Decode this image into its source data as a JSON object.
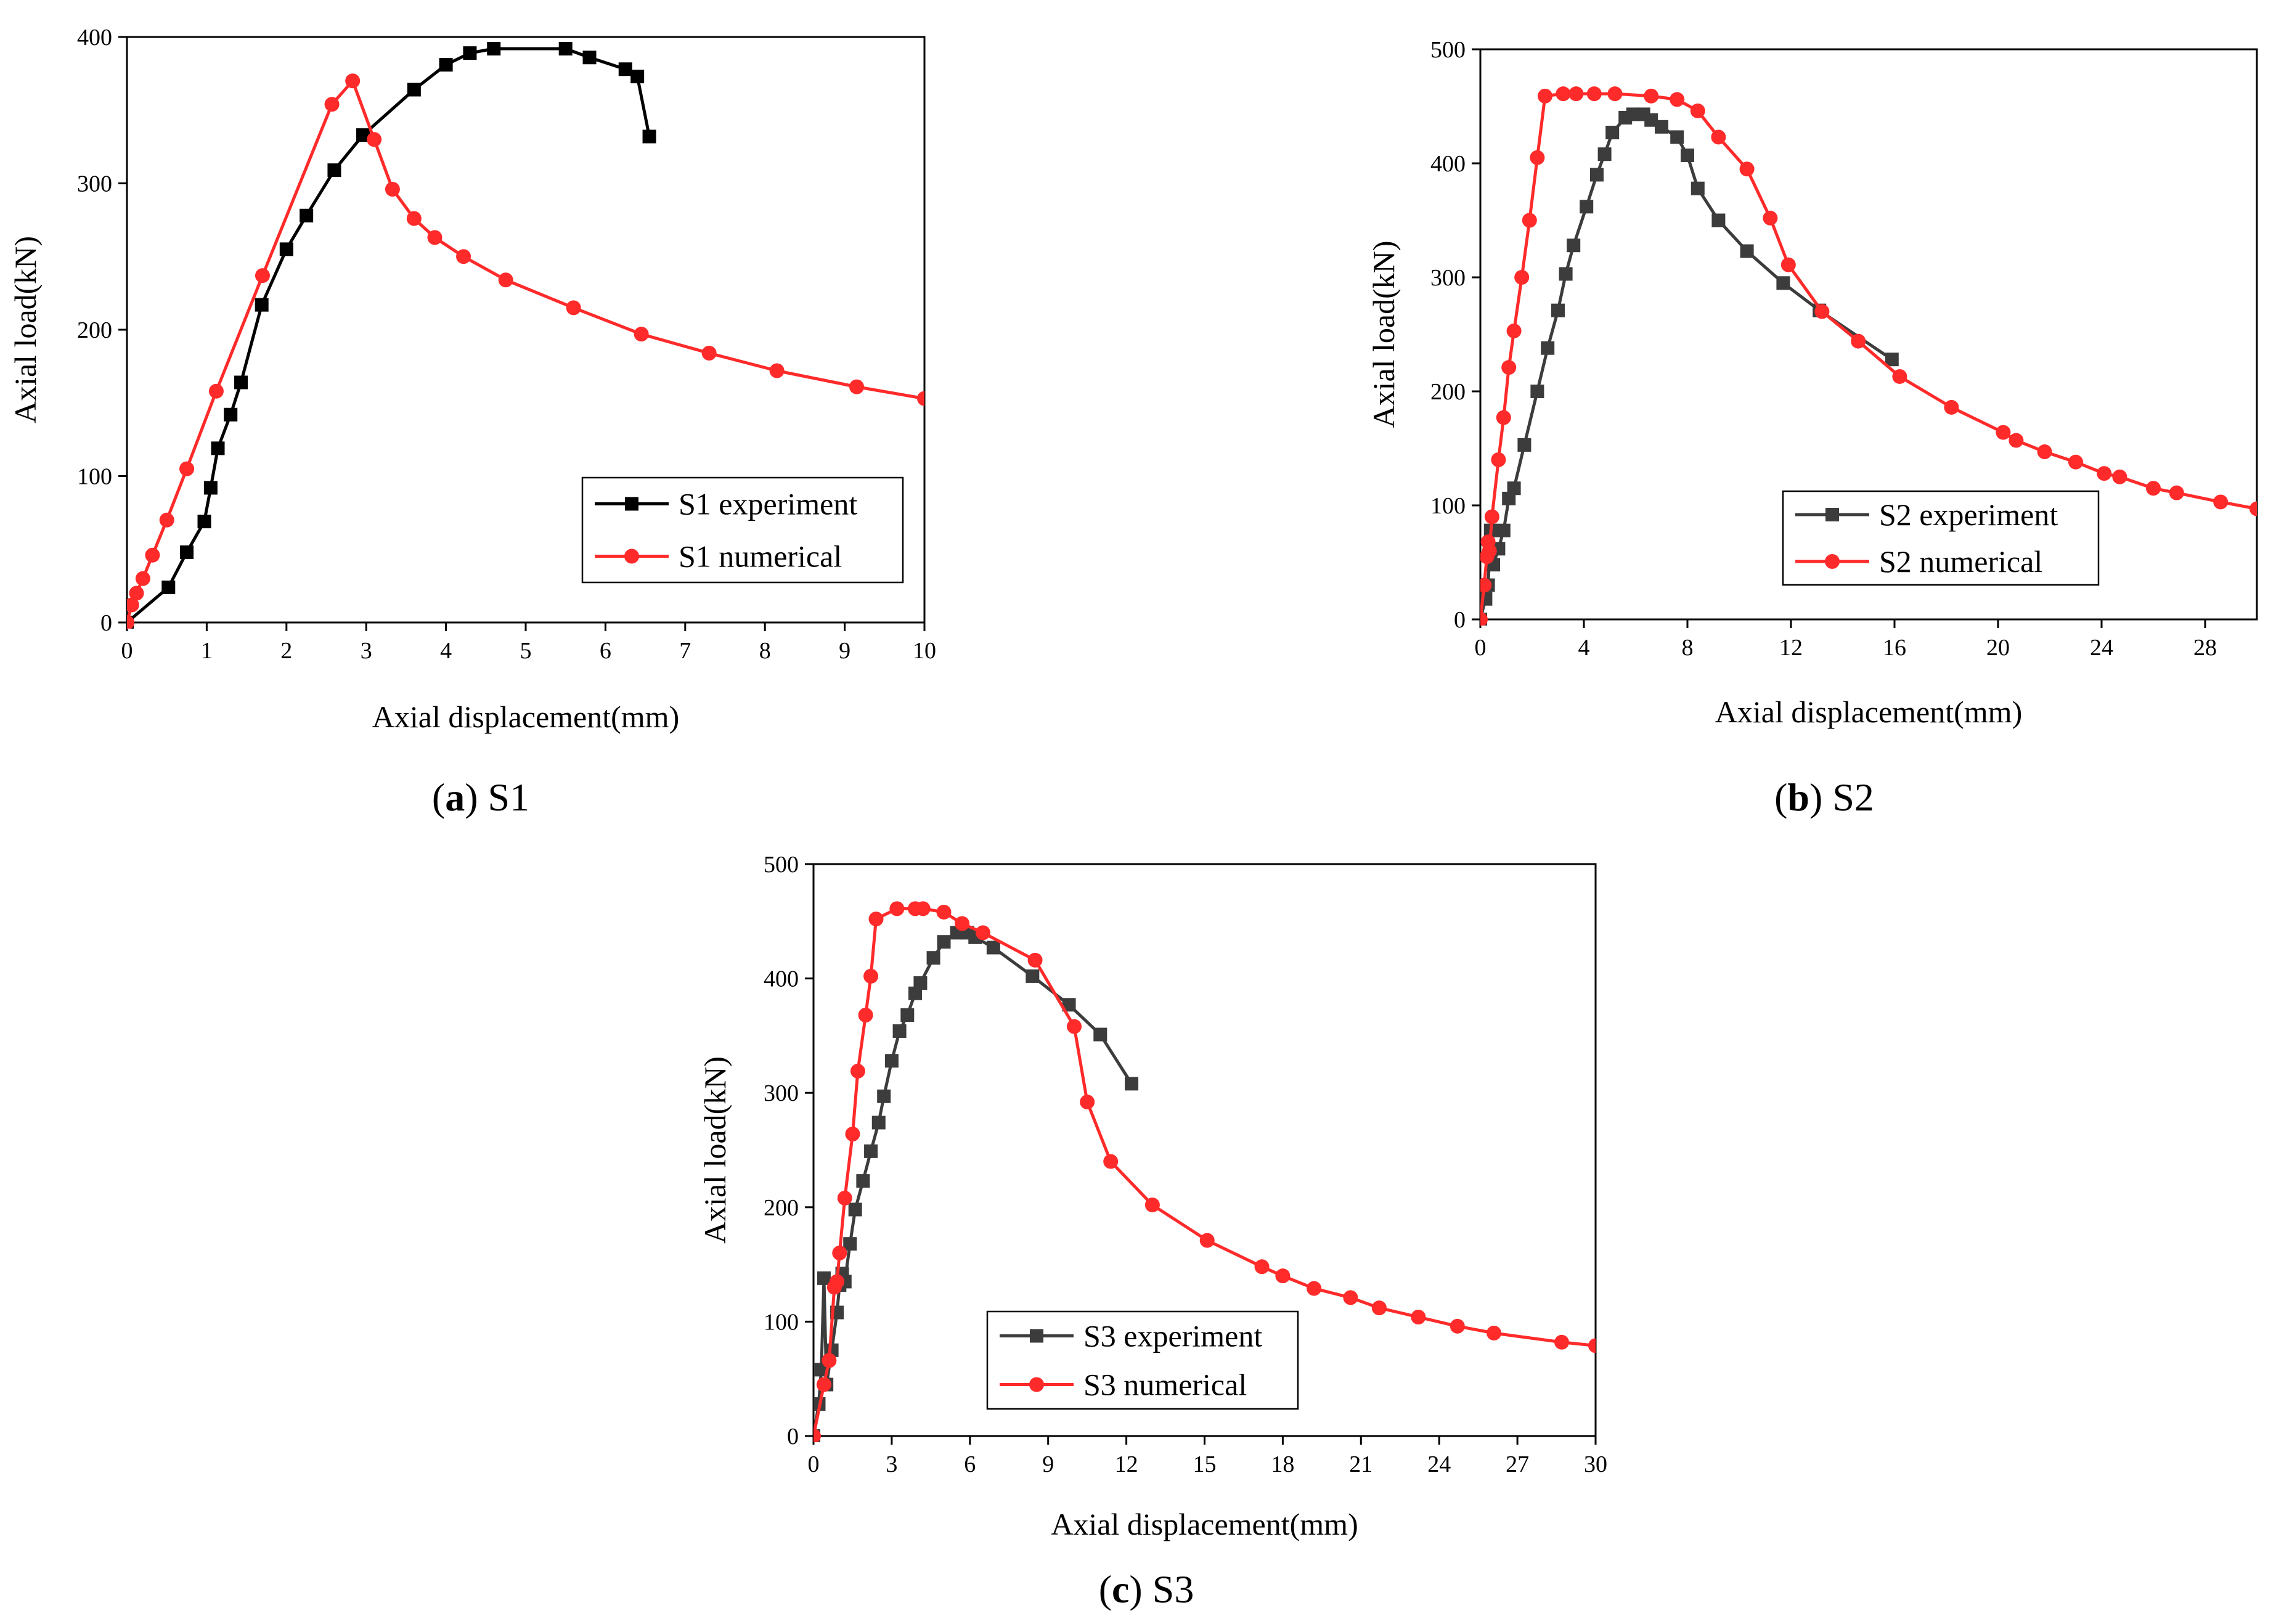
{
  "colors": {
    "s1_experiment": "#000000",
    "experiment_gray": "#3c3c3c",
    "numerical_red": "#ff2a2a"
  },
  "chart_data": [
    {
      "id": "a",
      "type": "line",
      "caption": {
        "letter": "a",
        "text": "S1"
      },
      "xlabel": "Axial displacement(mm)",
      "ylabel": "Axial load(kN)",
      "xlim": [
        0,
        10
      ],
      "ylim": [
        0,
        400
      ],
      "xticks": [
        0,
        1,
        2,
        3,
        4,
        5,
        6,
        7,
        8,
        9,
        10
      ],
      "yticks": [
        0,
        100,
        200,
        300,
        400
      ],
      "legend_position": "bottom-right",
      "series": [
        {
          "name": "S1 experiment",
          "marker": "square",
          "color": "#000000",
          "points": [
            [
              0,
              0
            ],
            [
              0.52,
              24
            ],
            [
              0.75,
              48
            ],
            [
              0.97,
              69
            ],
            [
              1.05,
              92
            ],
            [
              1.14,
              119
            ],
            [
              1.3,
              142
            ],
            [
              1.43,
              164
            ],
            [
              1.69,
              217
            ],
            [
              2.0,
              255
            ],
            [
              2.25,
              278
            ],
            [
              2.6,
              309
            ],
            [
              2.96,
              333
            ],
            [
              3.6,
              364
            ],
            [
              4.0,
              381
            ],
            [
              4.3,
              389
            ],
            [
              4.6,
              392
            ],
            [
              5.5,
              392
            ],
            [
              5.8,
              386
            ],
            [
              6.25,
              378
            ],
            [
              6.4,
              373
            ],
            [
              6.55,
              332
            ]
          ]
        },
        {
          "name": "S1 numerical",
          "marker": "circle",
          "color": "#ff2a2a",
          "points": [
            [
              0,
              0
            ],
            [
              0.06,
              12
            ],
            [
              0.12,
              20
            ],
            [
              0.2,
              30
            ],
            [
              0.32,
              46
            ],
            [
              0.5,
              70
            ],
            [
              0.75,
              105
            ],
            [
              1.12,
              158
            ],
            [
              1.7,
              237
            ],
            [
              2.57,
              354
            ],
            [
              2.83,
              370
            ],
            [
              3.1,
              330
            ],
            [
              3.33,
              296
            ],
            [
              3.6,
              276
            ],
            [
              3.86,
              263
            ],
            [
              4.22,
              250
            ],
            [
              4.75,
              234
            ],
            [
              5.6,
              215
            ],
            [
              6.45,
              197
            ],
            [
              7.3,
              184
            ],
            [
              8.15,
              172
            ],
            [
              9.15,
              161
            ],
            [
              10.0,
              153
            ]
          ]
        }
      ]
    },
    {
      "id": "b",
      "type": "line",
      "caption": {
        "letter": "b",
        "text": "S2"
      },
      "xlabel": "Axial displacement(mm)",
      "ylabel": "Axial load(kN)",
      "xlim": [
        0,
        30
      ],
      "ylim": [
        0,
        500
      ],
      "xticks": [
        0,
        4,
        8,
        12,
        16,
        20,
        24,
        28
      ],
      "yticks": [
        0,
        100,
        200,
        300,
        400,
        500
      ],
      "legend_position": "bottom-right",
      "series": [
        {
          "name": "S2 experiment",
          "marker": "square",
          "color": "#3c3c3c",
          "points": [
            [
              0,
              0
            ],
            [
              0.2,
              18
            ],
            [
              0.3,
              30
            ],
            [
              0.4,
              78
            ],
            [
              0.5,
              48
            ],
            [
              0.7,
              62
            ],
            [
              0.9,
              78
            ],
            [
              1.1,
              106
            ],
            [
              1.3,
              115
            ],
            [
              1.7,
              153
            ],
            [
              2.2,
              200
            ],
            [
              2.6,
              238
            ],
            [
              3.0,
              271
            ],
            [
              3.3,
              303
            ],
            [
              3.6,
              328
            ],
            [
              4.1,
              362
            ],
            [
              4.5,
              390
            ],
            [
              4.8,
              408
            ],
            [
              5.1,
              427
            ],
            [
              5.6,
              440
            ],
            [
              5.9,
              443
            ],
            [
              6.3,
              443
            ],
            [
              6.6,
              438
            ],
            [
              7.0,
              432
            ],
            [
              7.6,
              423
            ],
            [
              8.0,
              407
            ],
            [
              8.4,
              378
            ],
            [
              9.2,
              350
            ],
            [
              10.3,
              323
            ],
            [
              11.7,
              295
            ],
            [
              13.1,
              271
            ],
            [
              15.9,
              228
            ]
          ]
        },
        {
          "name": "S2 numerical",
          "marker": "circle",
          "color": "#ff2a2a",
          "points": [
            [
              0,
              0
            ],
            [
              0.15,
              30
            ],
            [
              0.25,
              55
            ],
            [
              0.3,
              68
            ],
            [
              0.35,
              60
            ],
            [
              0.45,
              90
            ],
            [
              0.7,
              140
            ],
            [
              0.9,
              177
            ],
            [
              1.1,
              221
            ],
            [
              1.3,
              253
            ],
            [
              1.6,
              300
            ],
            [
              1.9,
              350
            ],
            [
              2.2,
              405
            ],
            [
              2.5,
              459
            ],
            [
              3.2,
              461
            ],
            [
              3.7,
              461
            ],
            [
              4.4,
              461
            ],
            [
              5.2,
              461
            ],
            [
              6.6,
              459
            ],
            [
              7.6,
              456
            ],
            [
              8.4,
              446
            ],
            [
              9.2,
              423
            ],
            [
              10.3,
              395
            ],
            [
              11.2,
              352
            ],
            [
              11.9,
              311
            ],
            [
              13.2,
              270
            ],
            [
              14.6,
              244
            ],
            [
              16.2,
              213
            ],
            [
              18.2,
              186
            ],
            [
              20.2,
              164
            ],
            [
              20.7,
              157
            ],
            [
              21.8,
              147
            ],
            [
              23.0,
              138
            ],
            [
              24.1,
              128
            ],
            [
              24.7,
              125
            ],
            [
              26.0,
              115
            ],
            [
              26.9,
              111
            ],
            [
              28.6,
              103
            ],
            [
              30.0,
              97
            ]
          ]
        }
      ]
    },
    {
      "id": "c",
      "type": "line",
      "caption": {
        "letter": "c",
        "text": "S3"
      },
      "xlabel": "Axial displacement(mm)",
      "ylabel": "Axial load(kN)",
      "xlim": [
        0,
        30
      ],
      "ylim": [
        0,
        500
      ],
      "xticks": [
        0,
        3,
        6,
        9,
        12,
        15,
        18,
        21,
        24,
        27,
        30
      ],
      "yticks": [
        0,
        100,
        200,
        300,
        400,
        500
      ],
      "legend_position": "bottom-center",
      "series": [
        {
          "name": "S3 experiment",
          "marker": "square",
          "color": "#3c3c3c",
          "points": [
            [
              0,
              0
            ],
            [
              0.2,
              28
            ],
            [
              0.3,
              58
            ],
            [
              0.4,
              138
            ],
            [
              0.5,
              45
            ],
            [
              0.7,
              75
            ],
            [
              0.9,
              108
            ],
            [
              1.0,
              132
            ],
            [
              1.1,
              142
            ],
            [
              1.2,
              135
            ],
            [
              1.4,
              168
            ],
            [
              1.6,
              198
            ],
            [
              1.9,
              223
            ],
            [
              2.2,
              249
            ],
            [
              2.5,
              274
            ],
            [
              2.7,
              297
            ],
            [
              3.0,
              328
            ],
            [
              3.3,
              354
            ],
            [
              3.6,
              368
            ],
            [
              3.9,
              387
            ],
            [
              4.1,
              396
            ],
            [
              4.6,
              418
            ],
            [
              5.0,
              432
            ],
            [
              5.5,
              440
            ],
            [
              5.9,
              440
            ],
            [
              6.2,
              436
            ],
            [
              6.9,
              427
            ],
            [
              8.4,
              402
            ],
            [
              9.8,
              377
            ],
            [
              11.0,
              351
            ],
            [
              12.2,
              308
            ]
          ]
        },
        {
          "name": "S3 numerical",
          "marker": "circle",
          "color": "#ff2a2a",
          "points": [
            [
              0,
              0
            ],
            [
              0.4,
              45
            ],
            [
              0.6,
              66
            ],
            [
              0.8,
              130
            ],
            [
              0.9,
              135
            ],
            [
              1.0,
              160
            ],
            [
              1.2,
              208
            ],
            [
              1.5,
              264
            ],
            [
              1.7,
              319
            ],
            [
              2.0,
              368
            ],
            [
              2.2,
              402
            ],
            [
              2.4,
              452
            ],
            [
              3.2,
              461
            ],
            [
              3.9,
              461
            ],
            [
              4.2,
              461
            ],
            [
              5.0,
              458
            ],
            [
              5.7,
              448
            ],
            [
              6.5,
              440
            ],
            [
              8.5,
              416
            ],
            [
              10.0,
              358
            ],
            [
              10.5,
              292
            ],
            [
              11.4,
              240
            ],
            [
              13.0,
              202
            ],
            [
              15.1,
              171
            ],
            [
              17.2,
              148
            ],
            [
              18.0,
              140
            ],
            [
              19.2,
              129
            ],
            [
              20.6,
              121
            ],
            [
              21.7,
              112
            ],
            [
              23.2,
              104
            ],
            [
              24.7,
              96
            ],
            [
              26.1,
              90
            ],
            [
              28.7,
              82
            ],
            [
              30.0,
              79
            ]
          ]
        }
      ]
    }
  ]
}
